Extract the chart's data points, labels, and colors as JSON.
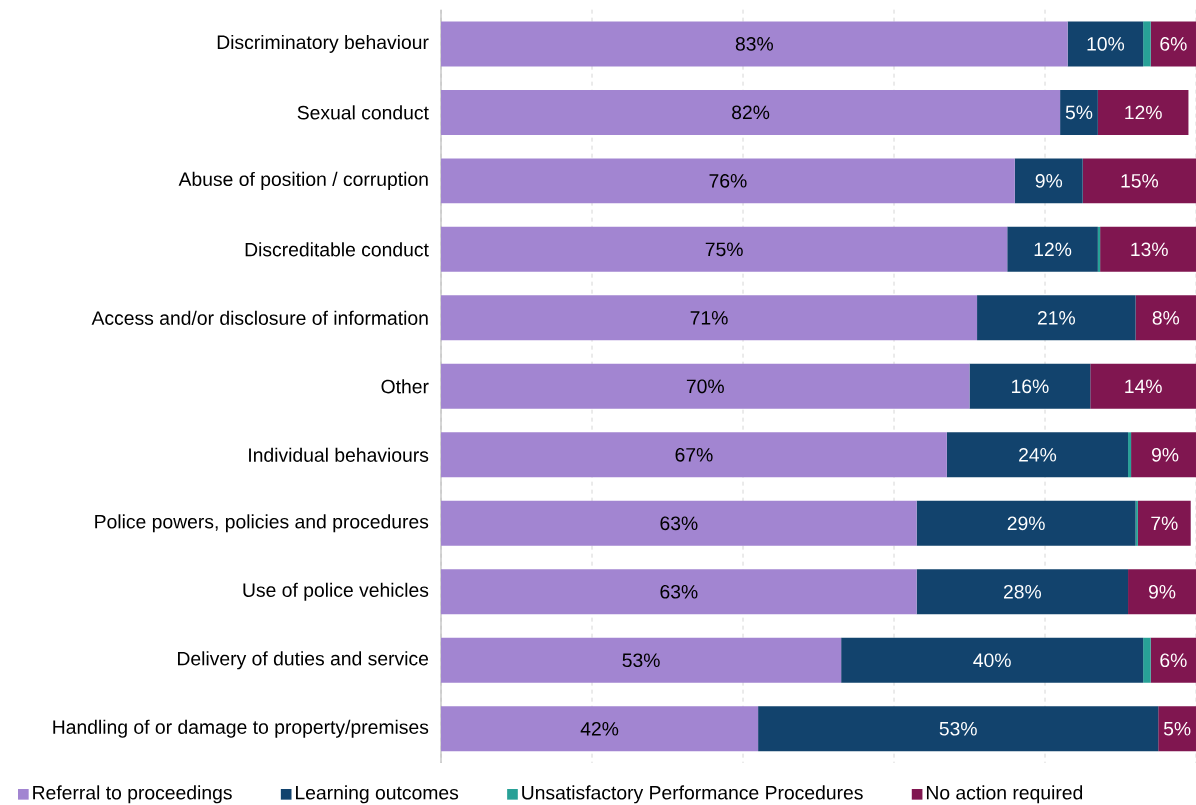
{
  "chart_data": {
    "type": "bar",
    "orientation": "horizontal",
    "stacked": true,
    "categories": [
      "Discriminatory behaviour",
      "Sexual conduct",
      "Abuse of position / corruption",
      "Discreditable conduct",
      "Access and/or disclosure of information",
      "Other",
      "Individual behaviours",
      "Police powers, policies and procedures",
      "Use of police vehicles",
      "Delivery of duties and service",
      "Handling of or damage to property/premises"
    ],
    "series": [
      {
        "name": "Referral to proceedings",
        "color": "#a285d1",
        "values": [
          83,
          82,
          76,
          75,
          71,
          70,
          67,
          63,
          63,
          53,
          42
        ],
        "value_labels": [
          "83%",
          "82%",
          "76%",
          "75%",
          "71%",
          "70%",
          "67%",
          "63%",
          "63%",
          "53%",
          "42%"
        ]
      },
      {
        "name": "Learning outcomes",
        "color": "#12436d",
        "values": [
          10,
          5,
          9,
          12,
          21,
          16,
          24,
          29,
          28,
          40,
          53
        ],
        "value_labels": [
          "10%",
          "5%",
          "9%",
          "12%",
          "21%",
          "16%",
          "24%",
          "29%",
          "28%",
          "40%",
          "53%"
        ]
      },
      {
        "name": "Unsatisfactory Performance Procedures",
        "color": "#28a197",
        "values": [
          1,
          0,
          0,
          0.3,
          0,
          0,
          0.4,
          0.3,
          0,
          1,
          0
        ],
        "value_labels": [
          null,
          null,
          null,
          null,
          null,
          null,
          null,
          null,
          null,
          null,
          null
        ]
      },
      {
        "name": "No action required",
        "color": "#801650",
        "values": [
          6,
          12,
          15,
          13,
          8,
          14,
          9,
          7,
          9,
          6,
          5
        ],
        "value_labels": [
          "6%",
          "12%",
          "15%",
          "13%",
          "8%",
          "14%",
          "9%",
          "7%",
          "9%",
          "6%",
          "5%"
        ]
      }
    ],
    "xlim": [
      0,
      100
    ],
    "xticks": [
      {
        "value": 0,
        "label": null
      },
      {
        "value": 20,
        "label": null
      },
      {
        "value": 40,
        "label": null
      },
      {
        "value": 60,
        "label": null
      },
      {
        "value": 80,
        "label": null
      },
      {
        "value": 100,
        "label": null
      }
    ],
    "grid": "x",
    "legend": "bottom",
    "tick_labels": "y"
  }
}
